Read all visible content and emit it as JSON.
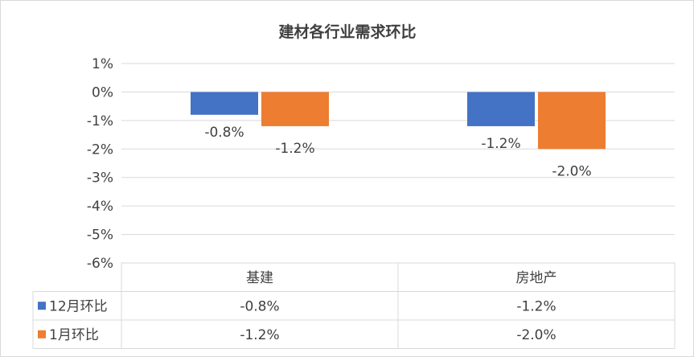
{
  "chart_data": {
    "type": "bar",
    "title": "建材各行业需求环比",
    "categories": [
      "基建",
      "房地产"
    ],
    "series": [
      {
        "name": "12月环比",
        "values": [
          -0.8,
          -1.2
        ],
        "labels": [
          "-0.8%",
          "-1.2%"
        ],
        "color": "#4472C4"
      },
      {
        "name": "1月环比",
        "values": [
          -1.2,
          -2.0
        ],
        "labels": [
          "-1.2%",
          "-2.0%"
        ],
        "color": "#ED7D31"
      }
    ],
    "ylim": [
      -6,
      1
    ],
    "yticks": [
      1,
      0,
      -1,
      -2,
      -3,
      -4,
      -5,
      -6
    ],
    "ytick_labels": [
      "1%",
      "0%",
      "-1%",
      "-2%",
      "-3%",
      "-4%",
      "-5%",
      "-6%"
    ],
    "xlabel": "",
    "ylabel": "",
    "grid": true,
    "legend": "data-table",
    "gridline_color": "#d9d9d9"
  }
}
